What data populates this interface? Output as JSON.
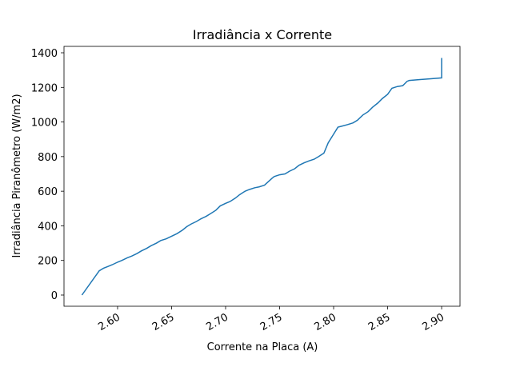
{
  "chart_data": {
    "type": "line",
    "title": "Irradiância x Corrente",
    "x_label": "Corrente na Placa (A)",
    "y_label": "Irradiância Piranômetro (W/m2)",
    "series": [
      {
        "color": "#1f77b4",
        "x": [
          2.567,
          2.583,
          2.587,
          2.591,
          2.595,
          2.6,
          2.604,
          2.609,
          2.613,
          2.618,
          2.622,
          2.627,
          2.631,
          2.636,
          2.64,
          2.645,
          2.65,
          2.655,
          2.66,
          2.664,
          2.668,
          2.673,
          2.677,
          2.682,
          2.686,
          2.691,
          2.695,
          2.7,
          2.704,
          2.709,
          2.713,
          2.718,
          2.722,
          2.727,
          2.731,
          2.736,
          2.743,
          2.745,
          2.75,
          2.755,
          2.759,
          2.764,
          2.768,
          2.773,
          2.777,
          2.782,
          2.786,
          2.791,
          2.795,
          2.8,
          2.804,
          2.807,
          2.813,
          2.818,
          2.822,
          2.827,
          2.832,
          2.836,
          2.841,
          2.845,
          2.85,
          2.854,
          2.859,
          2.864,
          2.868,
          2.87,
          2.88,
          2.89,
          2.9,
          2.9
        ],
        "values": [
          0,
          140,
          155,
          165,
          175,
          190,
          200,
          215,
          225,
          240,
          255,
          270,
          285,
          300,
          315,
          325,
          340,
          355,
          375,
          395,
          410,
          425,
          440,
          455,
          470,
          490,
          515,
          530,
          540,
          560,
          580,
          600,
          610,
          620,
          625,
          635,
          675,
          685,
          695,
          700,
          715,
          730,
          750,
          765,
          775,
          785,
          800,
          820,
          880,
          930,
          970,
          975,
          985,
          995,
          1010,
          1040,
          1060,
          1085,
          1110,
          1135,
          1160,
          1195,
          1205,
          1210,
          1235,
          1240,
          1245,
          1250,
          1255,
          1370
        ]
      }
    ],
    "xlim": [
      2.5504,
      2.917
    ],
    "ylim": [
      -64.7,
      1437
    ],
    "xticks": [
      {
        "value": 2.6,
        "label": "2.60"
      },
      {
        "value": 2.65,
        "label": "2.65"
      },
      {
        "value": 2.7,
        "label": "2.70"
      },
      {
        "value": 2.75,
        "label": "2.75"
      },
      {
        "value": 2.8,
        "label": "2.80"
      },
      {
        "value": 2.85,
        "label": "2.85"
      },
      {
        "value": 2.9,
        "label": "2.90"
      }
    ],
    "yticks": [
      0,
      200,
      400,
      600,
      800,
      1000,
      1200,
      1400
    ]
  }
}
